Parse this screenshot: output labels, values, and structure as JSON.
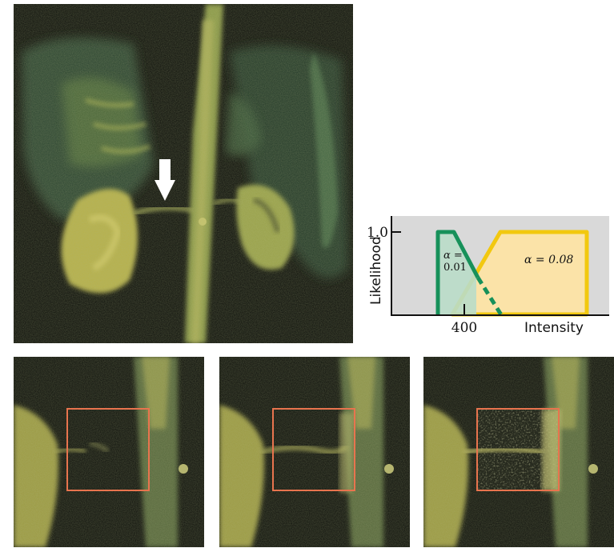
{
  "figure": {
    "plot": {
      "ylabel": "Likelihood",
      "xlabel": "Intensity",
      "y_tick": "1.0",
      "x_tick": "400",
      "alpha_green": "α =",
      "alpha_green_value": "0.01",
      "alpha_yellow": "α = 0.08",
      "colors": {
        "green": "#17915a",
        "yellow": "#f2c80f",
        "background": "#d9d9d9",
        "green_fill": "#b9dcc8",
        "yellow_fill": "#fbe3a8"
      }
    },
    "roi_color": "#e8744e"
  }
}
